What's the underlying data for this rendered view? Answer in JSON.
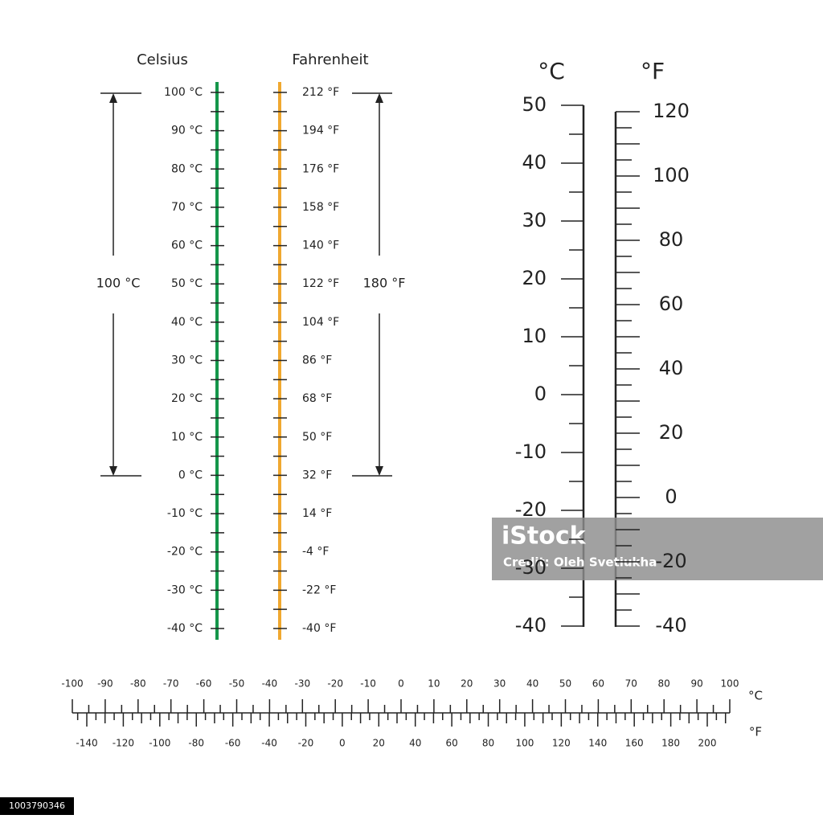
{
  "left_scale": {
    "celsius_title": "Celsius",
    "fahrenheit_title": "Fahrenheit",
    "celsius_labels": [
      "100 °C",
      "90 °C",
      "80 °C",
      "70 °C",
      "60 °C",
      "50 °C",
      "40 °C",
      "30 °C",
      "20 °C",
      "10 °C",
      "0 °C",
      "-10 °C",
      "-20 °C",
      "-30 °C",
      "-40 °C"
    ],
    "fahrenheit_labels": [
      "212 °F",
      "194 °F",
      "176 °F",
      "158 °F",
      "140 °F",
      "122 °F",
      "104 °F",
      "86 °F",
      "68 °F",
      "50 °F",
      "32 °F",
      "14 °F",
      "-4 °F",
      "-22 °F",
      "-40 °F"
    ],
    "celsius_span": "100 °C",
    "fahrenheit_span": "180 °F"
  },
  "right_scale": {
    "celsius_unit": "°C",
    "fahrenheit_unit": "°F",
    "celsius_labels": [
      "50",
      "40",
      "30",
      "20",
      "10",
      "0",
      "-10",
      "-20",
      "-30",
      "-40"
    ],
    "fahrenheit_labels": [
      "120",
      "100",
      "80",
      "60",
      "40",
      "20",
      "0",
      "-20",
      "-40"
    ]
  },
  "bottom_scale": {
    "celsius_labels": [
      "-100",
      "-90",
      "-80",
      "-70",
      "-60",
      "-50",
      "-40",
      "-30",
      "-20",
      "-10",
      "0",
      "10",
      "20",
      "30",
      "40",
      "50",
      "60",
      "70",
      "80",
      "90",
      "100"
    ],
    "fahrenheit_labels": [
      "-140",
      "-120",
      "-100",
      "-80",
      "-60",
      "-40",
      "-20",
      "0",
      "20",
      "40",
      "60",
      "80",
      "100",
      "120",
      "140",
      "160",
      "180",
      "200"
    ],
    "celsius_unit": "°C",
    "fahrenheit_unit": "°F"
  },
  "watermark": {
    "brand": "iStock",
    "credit": "Credit: Oleh Svetiukha"
  },
  "image_id": "1003790346"
}
